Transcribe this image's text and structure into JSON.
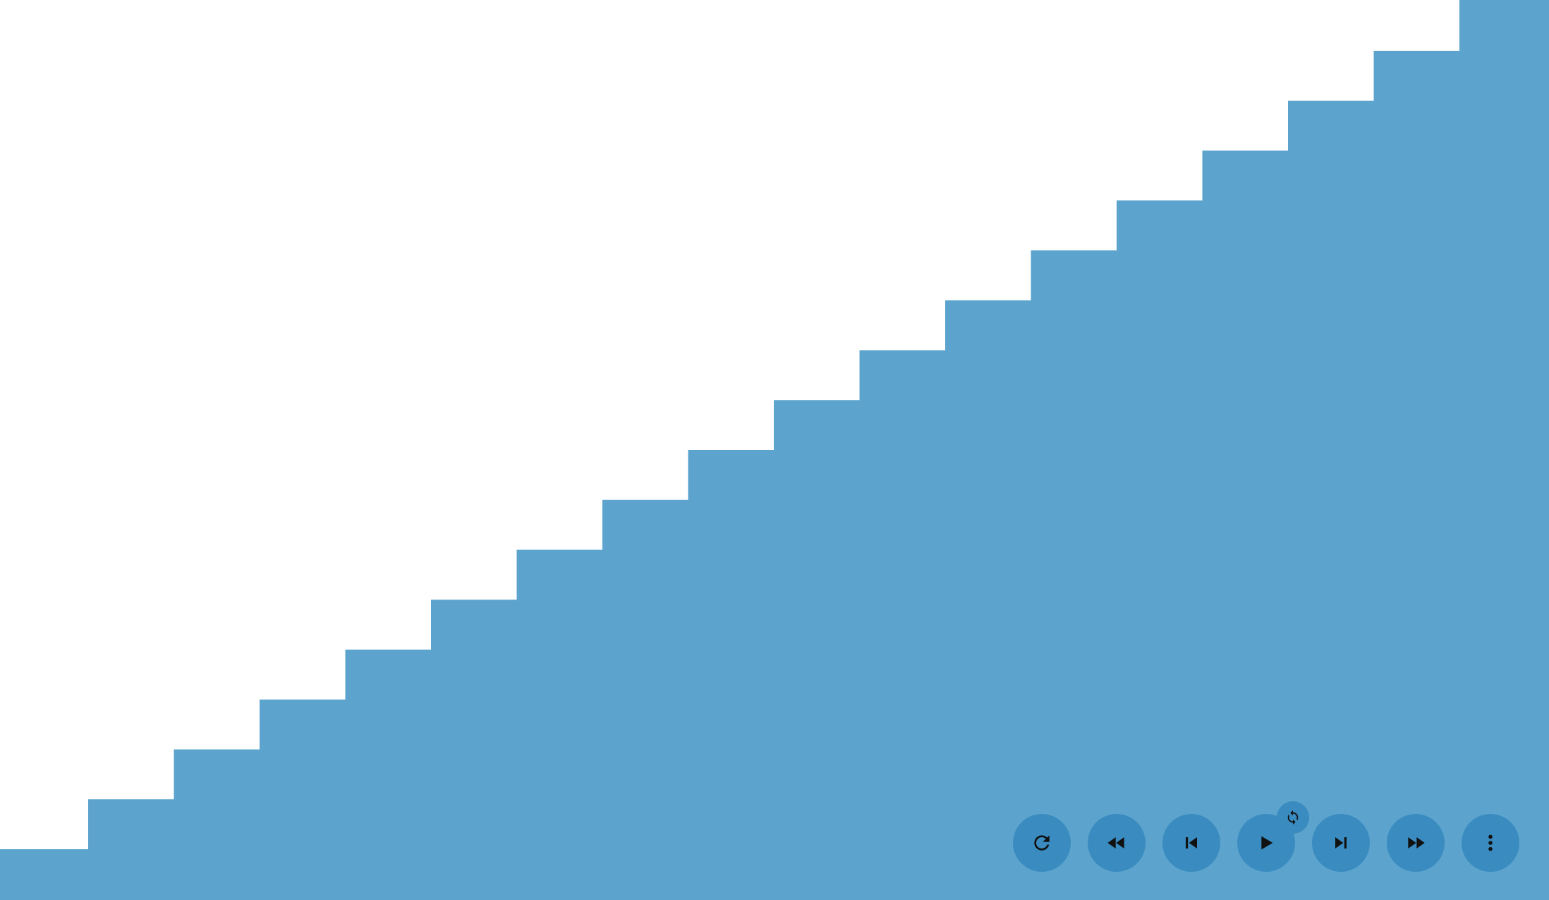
{
  "colors": {
    "background": "#ffffff",
    "stairs_fill": "#5ca4cd",
    "button_fill": "#3a8bc0",
    "icon_color": "#111111"
  },
  "scene": {
    "shape": "staircase",
    "step_count": 17
  },
  "controls": {
    "buttons": [
      {
        "name": "reset-button",
        "icon": "redo-icon"
      },
      {
        "name": "rewind-button",
        "icon": "rewind-icon"
      },
      {
        "name": "step-back-button",
        "icon": "skip-previous-icon"
      },
      {
        "name": "play-button",
        "icon": "play-icon"
      },
      {
        "name": "step-forward-button",
        "icon": "skip-next-icon"
      },
      {
        "name": "fast-forward-button",
        "icon": "fast-forward-icon"
      },
      {
        "name": "more-options-button",
        "icon": "more-vertical-icon"
      }
    ],
    "loop_toggle": {
      "icon": "loop-icon"
    }
  }
}
